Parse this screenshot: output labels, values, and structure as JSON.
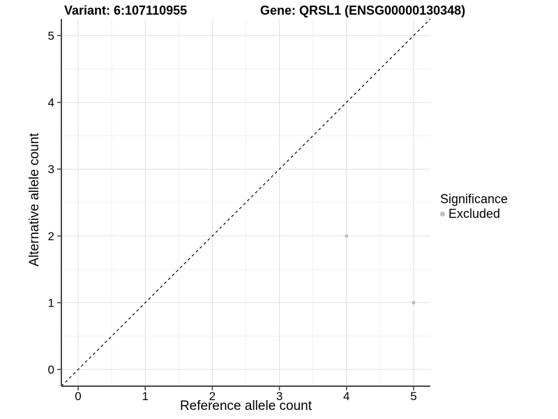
{
  "chart_data": {
    "type": "scatter",
    "title_left": "Variant: 6:107110955",
    "title_right": "Gene: QRSL1 (ENSG00000130348)",
    "xlabel": "Reference allele count",
    "ylabel": "Alternative allele count",
    "xticks": [
      0,
      1,
      2,
      3,
      4,
      5
    ],
    "yticks": [
      0,
      1,
      2,
      3,
      4,
      5
    ],
    "xlim": [
      -0.25,
      5.25
    ],
    "ylim": [
      -0.25,
      5.25
    ],
    "grid": {
      "major": true,
      "minor": true
    },
    "identity_line": {
      "style": "dashed",
      "from": [
        -0.25,
        -0.25
      ],
      "to": [
        5.25,
        5.25
      ],
      "color": "#111111"
    },
    "series": [
      {
        "name": "Excluded",
        "color": "#bdbdbd",
        "points": [
          [
            4,
            2
          ],
          [
            5,
            1
          ]
        ],
        "point_radius": 2.5
      }
    ],
    "legend": {
      "title": "Significance",
      "position": "right",
      "items": [
        {
          "label": "Excluded",
          "color": "#bdbdbd"
        }
      ]
    },
    "colors": {
      "background": "#ffffff",
      "grid_major": "#e4e4e4",
      "grid_minor": "#f0f0f0",
      "axis_line": "#484848",
      "tick_mark": "#484848",
      "tick_label": "#000000",
      "text": "#000000"
    }
  }
}
